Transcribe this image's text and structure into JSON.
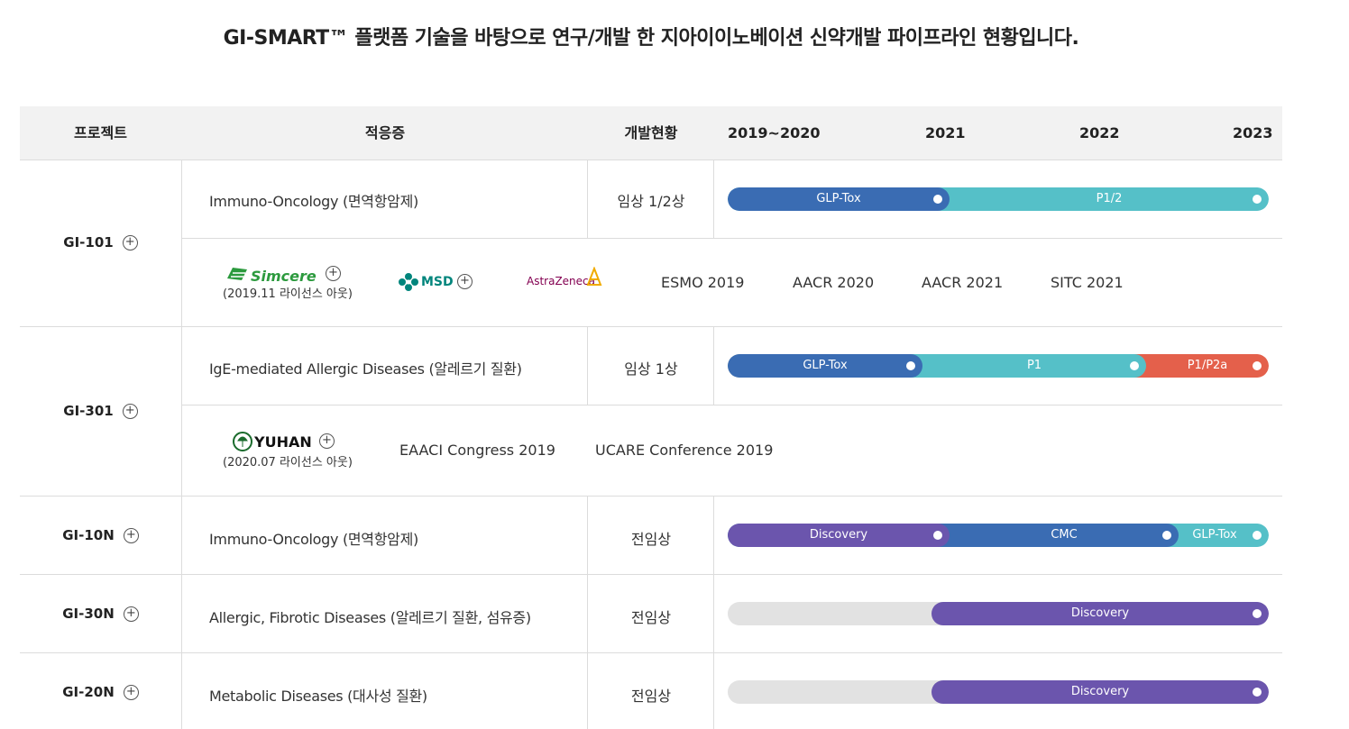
{
  "headline": "GI-SMART™ 플랫폼 기술을 바탕으로 연구/개발 한 지아이이노베이션 신약개발 파이프라인 현황입니다.",
  "header": {
    "project": "프로젝트",
    "indication": "적응증",
    "status": "개발현황",
    "years": [
      "2019~2020",
      "2021",
      "2022",
      "2023"
    ]
  },
  "colors": {
    "glp_tox": "#3a6cb3",
    "p12": "#55c0c8",
    "p1p2a": "#e4604b",
    "discovery": "#6b55ad",
    "cmc": "#3a6cb3",
    "track_bg": "#e2e2e2"
  },
  "rows": [
    {
      "project": "GI-101",
      "indication": "Immuno-Oncology (면역항암제)",
      "status": "임상 1/2상",
      "bars": [
        {
          "label": "GLP-Tox",
          "end_fraction": 0.41
        },
        {
          "label": "P1/2",
          "end_fraction": 1.0
        }
      ],
      "partners": [
        {
          "name": "Simcere",
          "sub": "(2019.11 라이선스 아웃)"
        },
        {
          "name": "MSD"
        },
        {
          "name": "AstraZeneca"
        }
      ],
      "events": [
        "ESMO 2019",
        "AACR 2020",
        "AACR 2021",
        "SITC 2021"
      ]
    },
    {
      "project": "GI-301",
      "indication": "IgE-mediated Allergic Diseases (알레르기 질환)",
      "status": "임상 1상",
      "bars": [
        {
          "label": "GLP-Tox",
          "end_fraction": 0.36
        },
        {
          "label": "P1",
          "end_fraction": 0.77
        },
        {
          "label": "P1/P2a",
          "end_fraction": 1.0
        }
      ],
      "partners": [
        {
          "name": "YUHAN",
          "sub": "(2020.07 라이선스 아웃)"
        }
      ],
      "events": [
        "EAACI Congress 2019",
        "UCARE Conference 2019"
      ]
    },
    {
      "project": "GI-10N",
      "indication": "Immuno-Oncology (면역항암제)",
      "status": "전임상",
      "bars": [
        {
          "label": "Discovery",
          "end_fraction": 0.41
        },
        {
          "label": "CMC",
          "end_fraction": 0.83
        },
        {
          "label": "GLP-Tox",
          "end_fraction": 1.0
        }
      ]
    },
    {
      "project": "GI-30N",
      "indication": "Allergic, Fibrotic Diseases (알레르기 질환, 섬유증)",
      "status": "전임상",
      "bars": [
        {
          "label": "Discovery",
          "start_fraction": 0.377,
          "end_fraction": 1.0
        }
      ]
    },
    {
      "project": "GI-20N",
      "indication": "Metabolic Diseases (대사성 질환)",
      "status": "전임상",
      "bars": [
        {
          "label": "Discovery",
          "start_fraction": 0.377,
          "end_fraction": 1.0
        }
      ]
    }
  ],
  "icons": {
    "expand": "plus-circle-icon"
  }
}
